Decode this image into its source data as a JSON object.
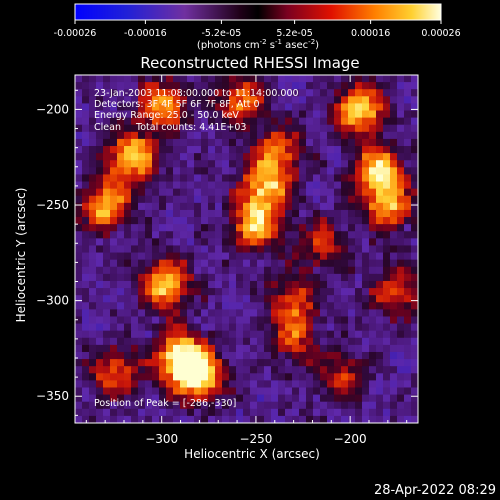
{
  "colorbar": {
    "tick_labels": [
      "-0.00026",
      "-0.00016",
      "-5.2e-05",
      "5.2e-05",
      "0.00016",
      "0.00026"
    ],
    "tick_values": [
      -0.00026,
      -0.00016,
      -5.2e-05,
      5.2e-05,
      0.00016,
      0.00026
    ],
    "range": [
      -0.00026,
      0.00026
    ],
    "units_prefix": "(photons cm",
    "units_exp1": "-2",
    "units_mid": " s",
    "units_exp2": "-1",
    "units_asec": " asec",
    "units_exp3": "-2",
    "units_suffix": ")"
  },
  "chart_data": {
    "type": "heatmap",
    "title": "Reconstructed RHESSI Image",
    "xlabel": "Heliocentric X (arcsec)",
    "ylabel": "Heliocentric Y (arcsec)",
    "xlim": [
      -346,
      -164
    ],
    "ylim": [
      -364,
      -182
    ],
    "xticks": [
      -300,
      -250,
      -200
    ],
    "xtick_labels": [
      "−300",
      "−250",
      "−200"
    ],
    "yticks": [
      -200,
      -250,
      -300,
      -350
    ],
    "ytick_labels": [
      "−200",
      "−250",
      "−300",
      "−350"
    ],
    "annotations": [
      "23-Jan-2003 11:08:00.000 to 11:14:00.000",
      "Detectors: 3F 4F 5F 6F 7F 8F, Att 0",
      "Energy Range: 25.0 - 50.0 keV",
      "Clean     Total counts: 4.41E+03"
    ],
    "peak_label": "Position of Peak = [-286,-330]",
    "peak_position": [
      -286,
      -330
    ],
    "bright_regions": [
      {
        "x": -316,
        "y": -225,
        "level": 0.85
      },
      {
        "x": -330,
        "y": -250,
        "level": 0.8
      },
      {
        "x": -298,
        "y": -292,
        "level": 0.85
      },
      {
        "x": -290,
        "y": -330,
        "level": 1.0
      },
      {
        "x": -280,
        "y": -340,
        "level": 0.9
      },
      {
        "x": -325,
        "y": -338,
        "level": 0.6
      },
      {
        "x": -250,
        "y": -260,
        "level": 0.8
      },
      {
        "x": -245,
        "y": -240,
        "level": 0.75
      },
      {
        "x": -238,
        "y": -222,
        "level": 0.6
      },
      {
        "x": -195,
        "y": -200,
        "level": 0.9
      },
      {
        "x": -185,
        "y": -232,
        "level": 0.85
      },
      {
        "x": -180,
        "y": -250,
        "level": 0.7
      },
      {
        "x": -215,
        "y": -270,
        "level": 0.45
      },
      {
        "x": -230,
        "y": -300,
        "level": 0.5
      },
      {
        "x": -300,
        "y": -198,
        "level": 0.7
      },
      {
        "x": -258,
        "y": -195,
        "level": 0.6
      },
      {
        "x": -230,
        "y": -320,
        "level": 0.5
      },
      {
        "x": -205,
        "y": -340,
        "level": 0.45
      },
      {
        "x": -175,
        "y": -295,
        "level": 0.55
      }
    ]
  },
  "timestamp": "28-Apr-2022 08:29"
}
